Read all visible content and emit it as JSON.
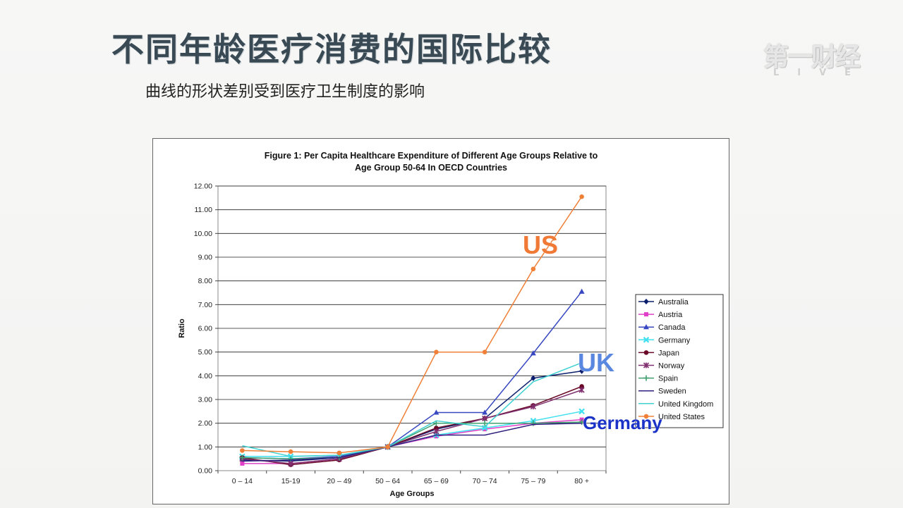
{
  "slide": {
    "title": "不同年龄医疗消费的国际比较",
    "subtitle": "曲线的形状差别受到医疗卫生制度的影响"
  },
  "logo": {
    "main": "第一财经",
    "sub": "LIVE"
  },
  "chart_data": {
    "type": "line",
    "title_lines": [
      "Figure 1: Per Capita Healthcare Expenditure of Different Age Groups Relative to",
      "Age Group 50-64 In OECD Countries"
    ],
    "xlabel": "Age Groups",
    "ylabel": "Ratio",
    "ylim": [
      0,
      12
    ],
    "ytick_labels": [
      "0.00",
      "1.00",
      "2.00",
      "3.00",
      "4.00",
      "5.00",
      "6.00",
      "7.00",
      "8.00",
      "9.00",
      "10.00",
      "11.00",
      "12.00"
    ],
    "categories": [
      "0 – 14",
      "15-19",
      "20 – 49",
      "50 – 64",
      "65 – 69",
      "70 – 74",
      "75 – 79",
      "80 +"
    ],
    "grid": true,
    "legend_position": "right",
    "series": [
      {
        "name": "Australia",
        "color": "#0b1f6e",
        "marker": "diamond",
        "values": [
          0.45,
          0.4,
          0.55,
          1.0,
          1.75,
          2.2,
          3.9,
          4.2
        ]
      },
      {
        "name": "Austria",
        "color": "#e040c8",
        "marker": "square",
        "values": [
          0.3,
          0.3,
          0.5,
          1.0,
          1.45,
          1.75,
          2.0,
          2.15
        ]
      },
      {
        "name": "Canada",
        "color": "#3848c0",
        "marker": "triangle",
        "values": [
          0.55,
          0.5,
          0.6,
          1.0,
          2.45,
          2.45,
          4.95,
          7.55
        ]
      },
      {
        "name": "Germany",
        "color": "#40e0f0",
        "marker": "x",
        "values": [
          0.6,
          0.6,
          0.65,
          1.0,
          1.5,
          1.8,
          2.1,
          2.5
        ]
      },
      {
        "name": "Japan",
        "color": "#6a0a28",
        "marker": "circle",
        "values": [
          0.55,
          0.25,
          0.45,
          1.0,
          1.8,
          2.2,
          2.75,
          3.55
        ]
      },
      {
        "name": "Norway",
        "color": "#803070",
        "marker": "star",
        "values": [
          0.5,
          0.3,
          0.5,
          1.0,
          1.65,
          2.2,
          2.7,
          3.4
        ]
      },
      {
        "name": "Spain",
        "color": "#40a070",
        "marker": "plus",
        "values": [
          0.55,
          0.5,
          0.55,
          1.0,
          2.0,
          2.0,
          2.0,
          2.05
        ]
      },
      {
        "name": "Sweden",
        "color": "#302080",
        "marker": "none",
        "values": [
          0.4,
          0.45,
          0.55,
          1.0,
          1.5,
          1.5,
          1.95,
          2.0
        ]
      },
      {
        "name": "United Kingdom",
        "color": "#40d0d0",
        "marker": "none",
        "values": [
          1.05,
          0.6,
          0.65,
          1.0,
          2.1,
          1.85,
          3.75,
          4.55
        ]
      },
      {
        "name": "United States",
        "color": "#f08038",
        "marker": "circle",
        "values": [
          0.85,
          0.8,
          0.75,
          1.0,
          5.0,
          5.0,
          8.5,
          11.55
        ]
      }
    ],
    "annotations": [
      {
        "text": "US",
        "color": "#f07a35",
        "near": "United States"
      },
      {
        "text": "UK",
        "color": "#5a88e0",
        "near": "United Kingdom"
      },
      {
        "text": "Germany",
        "color": "#1a32c8",
        "near": "Germany"
      }
    ]
  }
}
